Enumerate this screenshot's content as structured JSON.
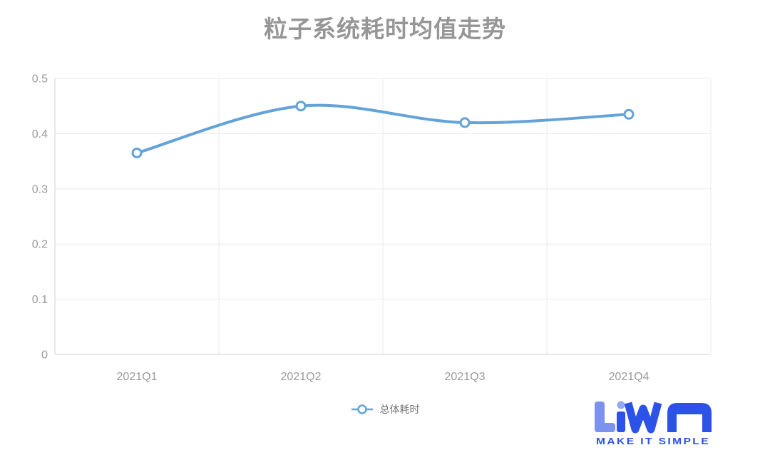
{
  "title": {
    "text": "粒子系统耗时均值走势"
  },
  "legend": {
    "items": [
      {
        "label": "总体耗时",
        "marker": "line-circle-marker"
      }
    ]
  },
  "logo": {
    "brand": "UWA",
    "tagline": "MAKE IT SIMPLE"
  },
  "colors": {
    "line": "#63a3da",
    "marker_fill": "#ffffff",
    "grid": "#ebebf0",
    "axis": "#cfcfd6",
    "tick_label": "#9a9a9a",
    "title": "#969696",
    "legend_label": "#6f6f6f",
    "logo_primary": "#2c52e8",
    "logo_light": "#7b92ee",
    "logo_dot": "#93a9f2"
  },
  "chart_data": {
    "type": "line",
    "title": "粒子系统耗时均值走势",
    "categories": [
      "2021Q1",
      "2021Q2",
      "2021Q3",
      "2021Q4"
    ],
    "series": [
      {
        "name": "总体耗时",
        "values": [
          0.365,
          0.45,
          0.42,
          0.435
        ]
      }
    ],
    "xlabel": "",
    "ylabel": "",
    "ylim": [
      0,
      0.5
    ],
    "yticks": [
      0,
      0.1,
      0.2,
      0.3,
      0.4,
      0.5
    ],
    "grid": true,
    "smooth": true,
    "marker": "hollow-circle",
    "legend_position": "bottom"
  }
}
